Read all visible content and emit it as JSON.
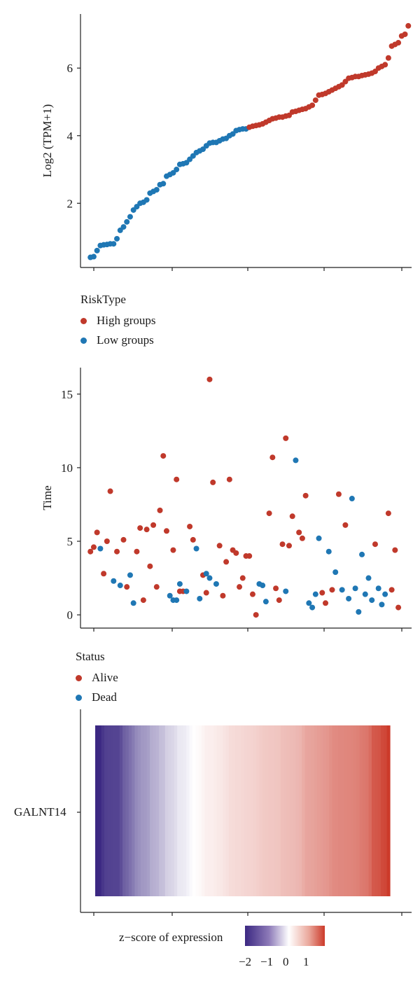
{
  "colors": {
    "high": "#c0392b",
    "low": "#1f77b4",
    "alive": "#c0392b",
    "dead": "#1f77b4",
    "heat_low": "#3b2882",
    "heat_mid": "#ffffff",
    "heat_high": "#cc3a2a"
  },
  "legend1": {
    "title": "RiskType",
    "items": [
      {
        "label": "High groups",
        "color_key": "high"
      },
      {
        "label": "Low groups",
        "color_key": "low"
      }
    ]
  },
  "legend2": {
    "title": "Status",
    "items": [
      {
        "label": "Alive",
        "color_key": "alive"
      },
      {
        "label": "Dead",
        "color_key": "dead"
      }
    ]
  },
  "heatmap": {
    "gene": "GALNT14",
    "colorbar_label": "z−score of expression",
    "colorbar_ticks": [
      "−2",
      "−1",
      "0",
      "1"
    ]
  },
  "chart_data": [
    {
      "type": "scatter",
      "title": "",
      "xlabel": "",
      "ylabel": "Log2 (TPM+1)",
      "yticks": [
        2,
        4,
        6
      ],
      "ylim": [
        0.1,
        7.6
      ],
      "xlim": [
        -2,
        98
      ],
      "series": [
        {
          "name": "Low groups",
          "color_key": "low",
          "x_start": 1,
          "values": [
            0.4,
            0.42,
            0.6,
            0.75,
            0.77,
            0.78,
            0.8,
            0.8,
            0.95,
            1.2,
            1.3,
            1.45,
            1.6,
            1.8,
            1.9,
            2.0,
            2.03,
            2.1,
            2.3,
            2.35,
            2.4,
            2.55,
            2.58,
            2.8,
            2.85,
            2.9,
            3.0,
            3.15,
            3.17,
            3.2,
            3.3,
            3.4,
            3.5,
            3.55,
            3.6,
            3.7,
            3.78,
            3.8,
            3.8,
            3.85,
            3.9,
            3.92,
            4.0,
            4.05,
            4.15,
            4.18,
            4.2,
            4.2
          ]
        },
        {
          "name": "High groups",
          "color_key": "high",
          "x_start": 49,
          "values": [
            4.25,
            4.28,
            4.3,
            4.32,
            4.35,
            4.4,
            4.45,
            4.5,
            4.52,
            4.55,
            4.55,
            4.58,
            4.6,
            4.7,
            4.72,
            4.75,
            4.78,
            4.8,
            4.85,
            4.9,
            5.05,
            5.2,
            5.22,
            5.25,
            5.3,
            5.35,
            5.4,
            5.45,
            5.5,
            5.6,
            5.7,
            5.72,
            5.75,
            5.75,
            5.78,
            5.8,
            5.82,
            5.85,
            5.9,
            6.0,
            6.05,
            6.1,
            6.3,
            6.65,
            6.7,
            6.75,
            6.95,
            7.0,
            7.25
          ]
        }
      ]
    },
    {
      "type": "scatter",
      "title": "",
      "xlabel": "",
      "ylabel": "Time",
      "yticks": [
        0,
        5,
        10,
        15
      ],
      "ylim": [
        -0.9,
        16.8
      ],
      "xlim": [
        -2,
        98
      ],
      "series": [
        {
          "name": "Alive",
          "color_key": "alive",
          "x": [
            1,
            2,
            3,
            5,
            6,
            7,
            9,
            11,
            12,
            15,
            16,
            17,
            18,
            19,
            20,
            21,
            22,
            23,
            24,
            26,
            27,
            28,
            29,
            31,
            32,
            35,
            36,
            37,
            38,
            40,
            41,
            42,
            43,
            44,
            45,
            46,
            47,
            48,
            49,
            50,
            51,
            55,
            56,
            57,
            58,
            59,
            60,
            61,
            62,
            64,
            65,
            66,
            71,
            72,
            74,
            76,
            78,
            87,
            91,
            92,
            93,
            94
          ],
          "y": [
            4.3,
            4.6,
            5.6,
            2.8,
            5.0,
            8.4,
            4.3,
            5.1,
            1.9,
            4.3,
            5.9,
            1.0,
            5.8,
            3.3,
            6.1,
            1.9,
            7.1,
            10.8,
            5.7,
            4.4,
            9.2,
            1.6,
            1.6,
            6.0,
            5.1,
            2.7,
            1.5,
            16.0,
            9.0,
            4.7,
            1.3,
            3.6,
            9.2,
            4.4,
            4.2,
            1.9,
            2.5,
            4.0,
            4.0,
            1.4,
            0.0,
            6.9,
            10.7,
            1.8,
            1.0,
            4.8,
            12.0,
            4.7,
            6.7,
            5.6,
            5.2,
            8.1,
            1.5,
            0.8,
            1.7,
            8.2,
            6.1,
            4.8,
            6.9,
            1.7,
            4.4,
            0.5
          ]
        },
        {
          "name": "Dead",
          "color_key": "dead",
          "x": [
            4,
            8,
            10,
            13,
            14,
            25,
            26,
            27,
            28,
            30,
            33,
            34,
            36,
            37,
            39,
            52,
            53,
            54,
            60,
            63,
            67,
            68,
            69,
            70,
            73,
            75,
            77,
            79,
            80,
            81,
            82,
            83,
            84,
            85,
            86,
            88,
            89,
            90
          ],
          "y": [
            4.5,
            2.3,
            2.0,
            2.7,
            0.8,
            1.3,
            1.0,
            1.0,
            2.1,
            1.6,
            4.5,
            1.1,
            2.8,
            2.5,
            2.1,
            2.1,
            2.0,
            0.9,
            1.6,
            10.5,
            0.8,
            0.5,
            1.4,
            5.2,
            4.3,
            2.9,
            1.7,
            1.1,
            7.9,
            1.8,
            0.2,
            4.1,
            1.4,
            2.5,
            1.0,
            1.8,
            0.7,
            1.4
          ]
        }
      ]
    }
  ]
}
